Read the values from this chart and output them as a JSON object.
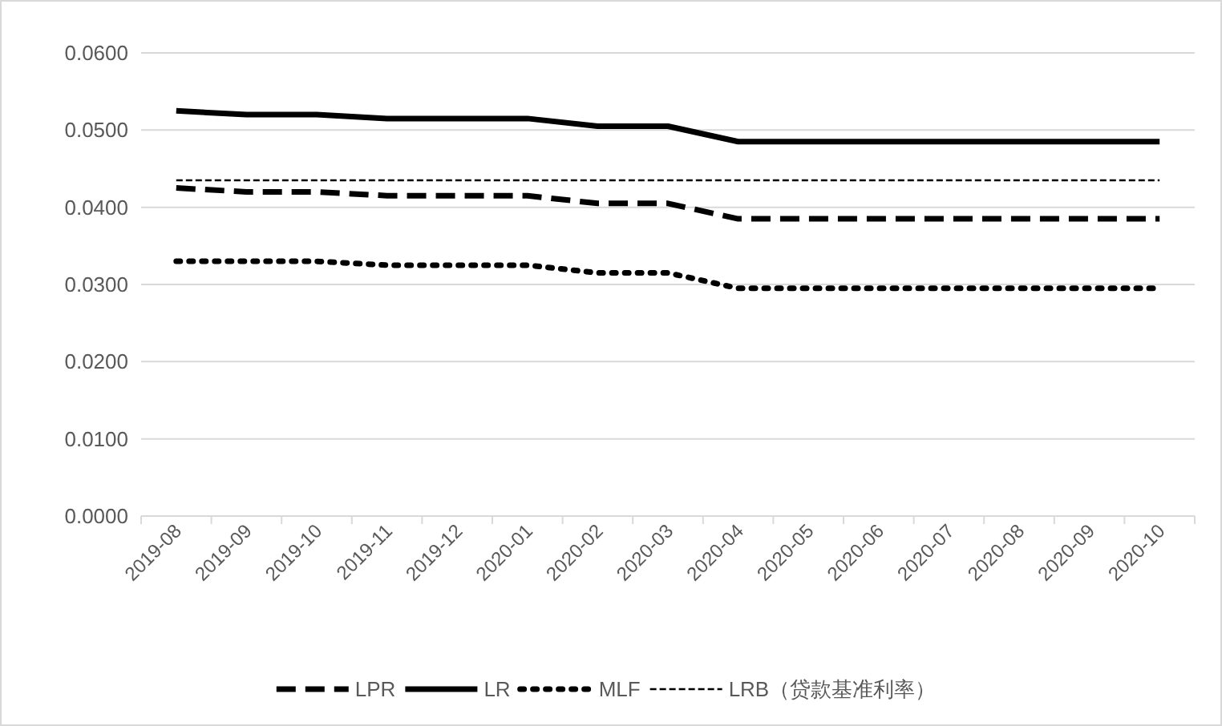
{
  "chart_data": {
    "type": "line",
    "categories": [
      "2019-08",
      "2019-09",
      "2019-10",
      "2019-11",
      "2019-12",
      "2020-01",
      "2020-02",
      "2020-03",
      "2020-04",
      "2020-05",
      "2020-06",
      "2020-07",
      "2020-08",
      "2020-09",
      "2020-10"
    ],
    "series": [
      {
        "name": "LPR",
        "color": "#000000",
        "line_style": "dashed",
        "values": [
          0.0425,
          0.042,
          0.042,
          0.0415,
          0.0415,
          0.0415,
          0.0405,
          0.0405,
          0.0385,
          0.0385,
          0.0385,
          0.0385,
          0.0385,
          0.0385,
          0.0385
        ]
      },
      {
        "name": "LR",
        "color": "#000000",
        "line_style": "solid",
        "values": [
          0.0525,
          0.052,
          0.052,
          0.0515,
          0.0515,
          0.0515,
          0.0505,
          0.0505,
          0.0485,
          0.0485,
          0.0485,
          0.0485,
          0.0485,
          0.0485,
          0.0485
        ]
      },
      {
        "name": "MLF",
        "color": "#000000",
        "line_style": "dotted",
        "values": [
          0.033,
          0.033,
          0.033,
          0.0325,
          0.0325,
          0.0325,
          0.0315,
          0.0315,
          0.0295,
          0.0295,
          0.0295,
          0.0295,
          0.0295,
          0.0295,
          0.0295
        ]
      },
      {
        "name": "LRB（贷款基准利率）",
        "color": "#000000",
        "line_style": "dashed",
        "values": [
          0.0435,
          0.0435,
          0.0435,
          0.0435,
          0.0435,
          0.0435,
          0.0435,
          0.0435,
          0.0435,
          0.0435,
          0.0435,
          0.0435,
          0.0435,
          0.0435,
          0.0435
        ]
      }
    ],
    "ylim": [
      0,
      0.06
    ],
    "yticks": [
      {
        "value": 0,
        "label": "0.0000"
      },
      {
        "value": 0.01,
        "label": "0.0100"
      },
      {
        "value": 0.02,
        "label": "0.0200"
      },
      {
        "value": 0.03,
        "label": "0.0300"
      },
      {
        "value": 0.04,
        "label": "0.0400"
      },
      {
        "value": 0.05,
        "label": "0.0500"
      },
      {
        "value": 0.06,
        "label": "0.0600"
      }
    ],
    "grid": "y",
    "legend": "bottom",
    "marker": "none"
  }
}
